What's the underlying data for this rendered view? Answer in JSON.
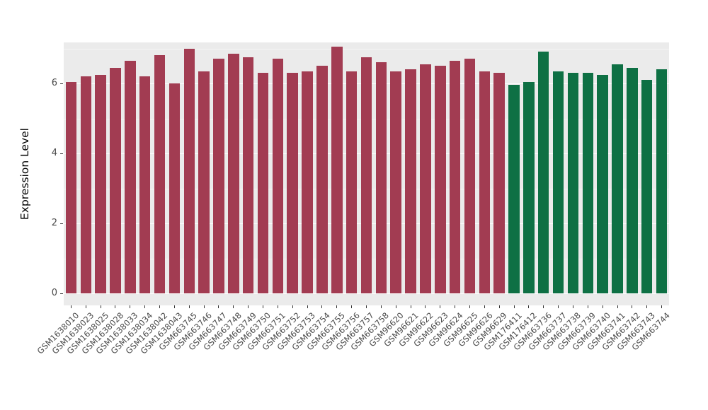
{
  "chart_data": {
    "type": "bar",
    "title": "",
    "xlabel": "",
    "ylabel": "Expression Level",
    "ylim": [
      0,
      7.17
    ],
    "yticks": [
      0,
      2,
      4,
      6
    ],
    "yticks_minor": [
      1,
      3,
      5,
      7
    ],
    "grid": "white major and minor horizontal lines on gray panel",
    "legend_position": "none",
    "panel_background": "#EBEBEB",
    "group_colors": {
      "maroon": "#A23C52",
      "green": "#0E7044"
    },
    "categories": [
      "GSM1638010",
      "GSM1638023",
      "GSM1638025",
      "GSM1638028",
      "GSM1638033",
      "GSM1638034",
      "GSM1638042",
      "GSM1638043",
      "GSM663745",
      "GSM663746",
      "GSM663747",
      "GSM663748",
      "GSM663749",
      "GSM663750",
      "GSM663751",
      "GSM663752",
      "GSM663753",
      "GSM663754",
      "GSM663755",
      "GSM663756",
      "GSM663757",
      "GSM663758",
      "GSM96620",
      "GSM96621",
      "GSM96622",
      "GSM96623",
      "GSM96624",
      "GSM96625",
      "GSM96626",
      "GSM96629",
      "GSM176411",
      "GSM176412",
      "GSM663736",
      "GSM663737",
      "GSM663738",
      "GSM663739",
      "GSM663740",
      "GSM663741",
      "GSM663742",
      "GSM663743",
      "GSM663744"
    ],
    "values": [
      6.05,
      6.2,
      6.25,
      6.45,
      6.65,
      6.2,
      6.8,
      6.0,
      7.0,
      6.35,
      6.7,
      6.85,
      6.75,
      6.3,
      6.7,
      6.3,
      6.35,
      6.5,
      7.05,
      6.35,
      6.75,
      6.6,
      6.35,
      6.4,
      6.55,
      6.5,
      6.65,
      6.7,
      6.35,
      6.3,
      5.95,
      6.05,
      6.9,
      6.35,
      6.3,
      6.3,
      6.25,
      6.55,
      6.45,
      6.1,
      6.4
    ],
    "bar_groups": [
      "maroon",
      "maroon",
      "maroon",
      "maroon",
      "maroon",
      "maroon",
      "maroon",
      "maroon",
      "maroon",
      "maroon",
      "maroon",
      "maroon",
      "maroon",
      "maroon",
      "maroon",
      "maroon",
      "maroon",
      "maroon",
      "maroon",
      "maroon",
      "maroon",
      "maroon",
      "maroon",
      "maroon",
      "maroon",
      "maroon",
      "maroon",
      "maroon",
      "maroon",
      "maroon",
      "green",
      "green",
      "green",
      "green",
      "green",
      "green",
      "green",
      "green",
      "green",
      "green",
      "green"
    ]
  }
}
